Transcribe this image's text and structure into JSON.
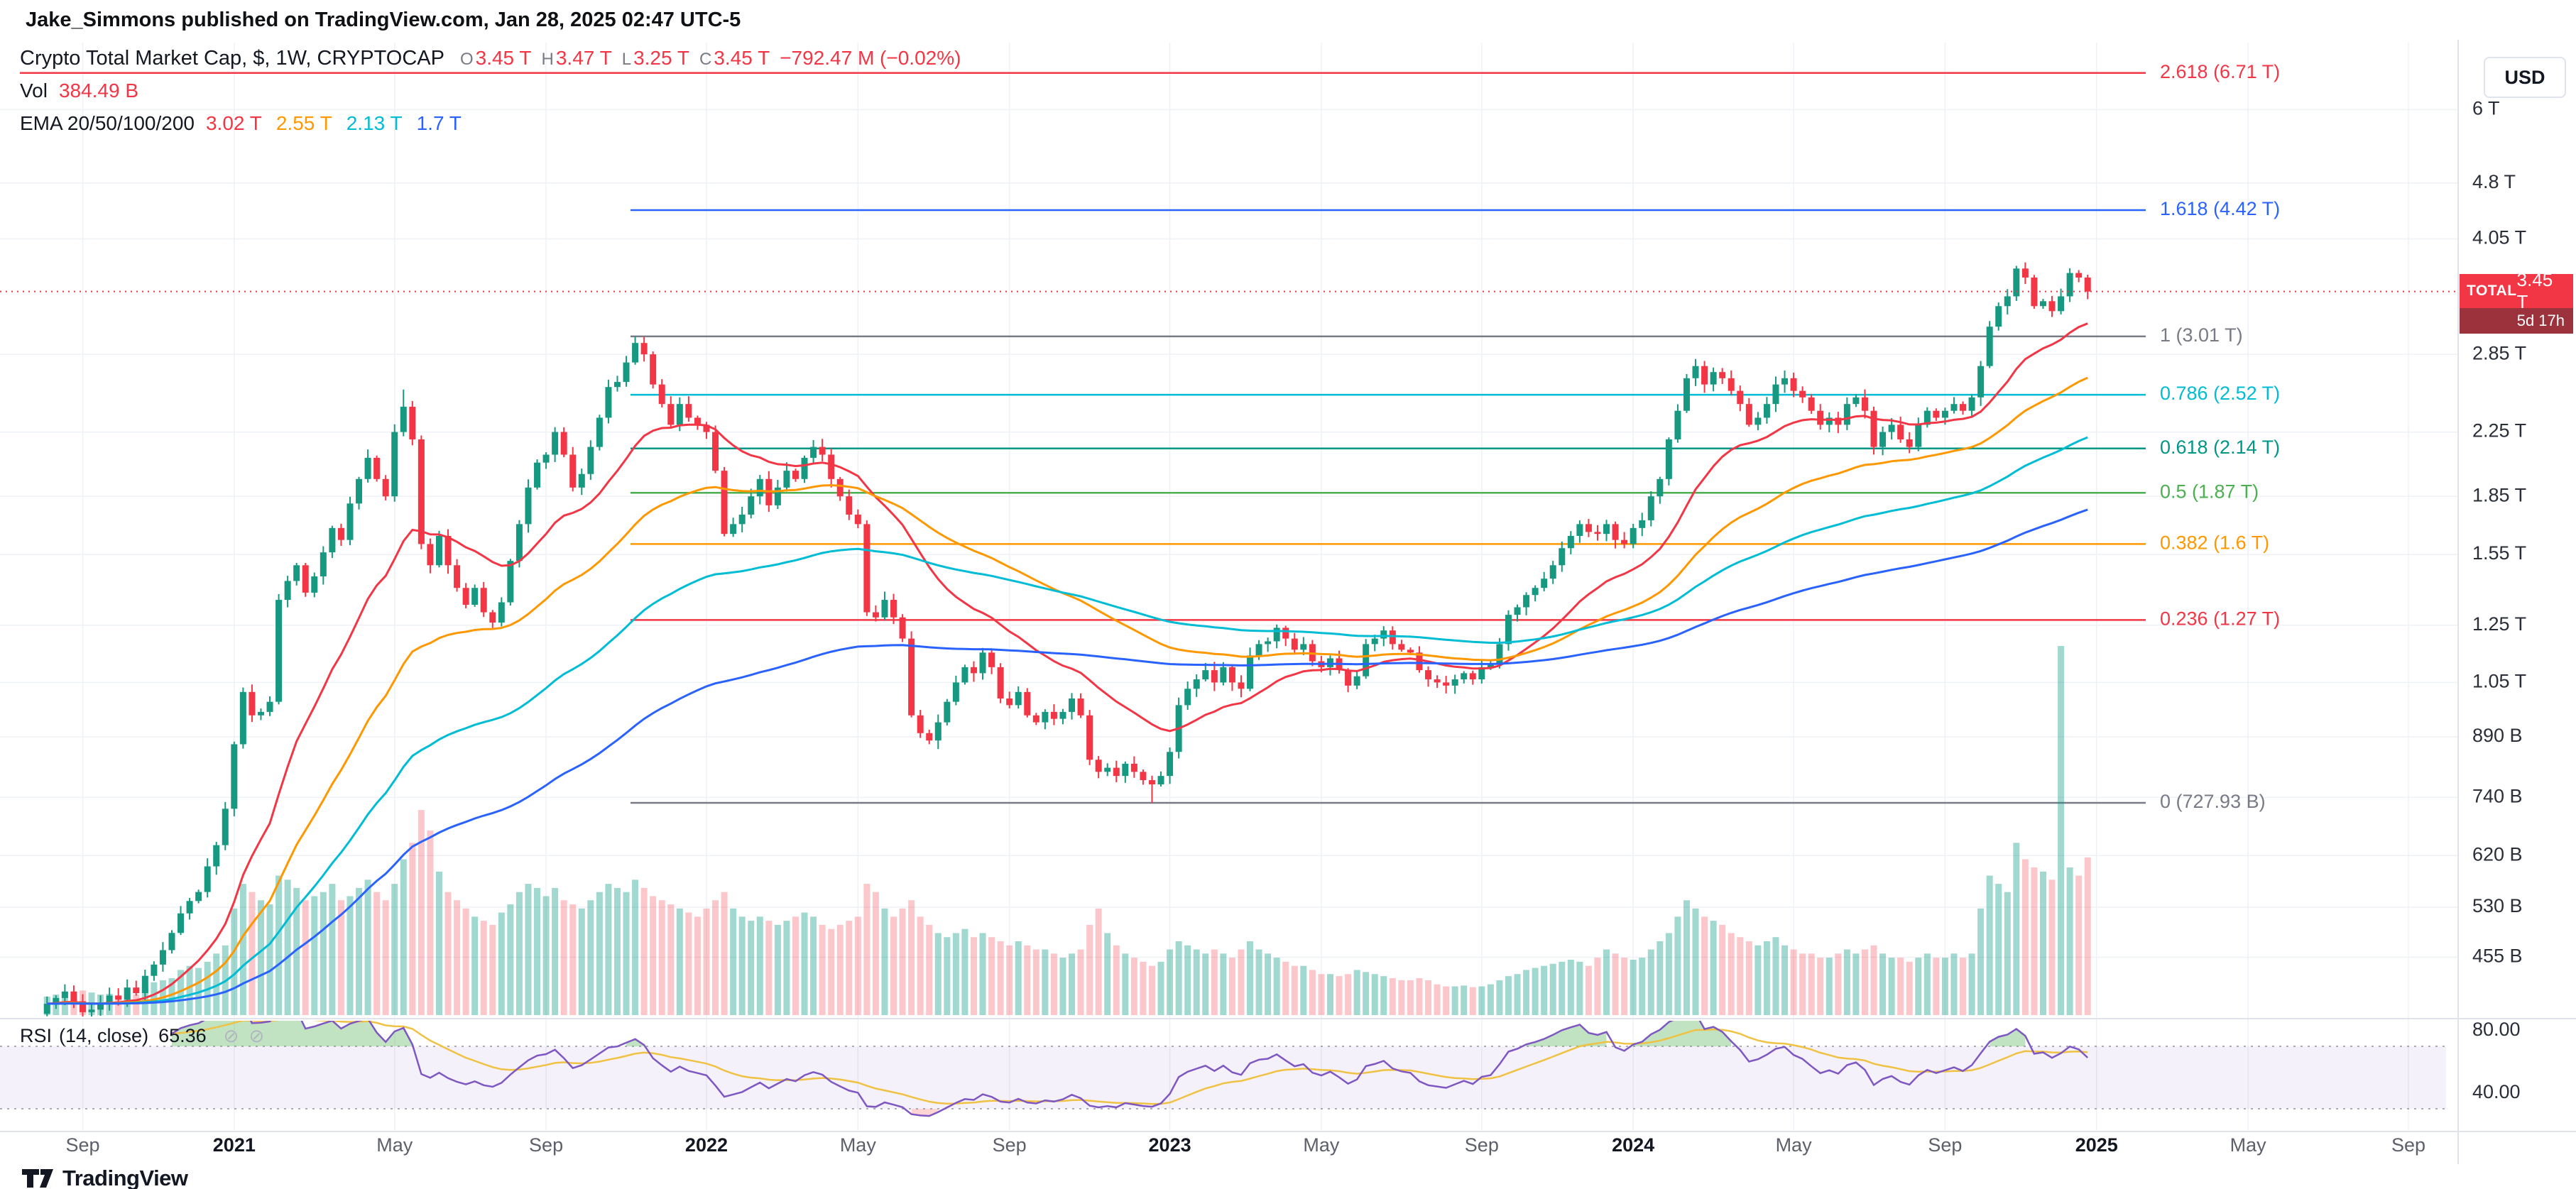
{
  "attribution": {
    "text": "Jake_Simmons published on TradingView.com, Jan 28, 2025 02:47 UTC-5"
  },
  "legend": {
    "title": "Crypto Total Market Cap, $, 1W, CRYPTOCAP",
    "ohlc": {
      "color": "#f23645",
      "o_label": "O",
      "o": "3.45 T",
      "h_label": "H",
      "h": "3.47 T",
      "l_label": "L",
      "l": "3.25 T",
      "c_label": "C",
      "c": "3.45 T",
      "change": "−792.47 M (−0.02%)"
    },
    "vol_label": "Vol",
    "vol_value": "384.49 B",
    "vol_color": "#f23645",
    "ema_label": "EMA 20/50/100/200",
    "ema_values": [
      {
        "text": "3.02 T",
        "color": "#f23645"
      },
      {
        "text": "2.55 T",
        "color": "#ff9800"
      },
      {
        "text": "2.13 T",
        "color": "#00bcd4"
      },
      {
        "text": "1.7 T",
        "color": "#2962ff"
      }
    ]
  },
  "price_scale": {
    "currency": "USD",
    "badge": {
      "symbol": "TOTAL",
      "price": "3.45 T",
      "countdown": "5d 17h"
    }
  },
  "rsi_legend": {
    "name": "RSI",
    "params": "(14, close)",
    "value": "65.36",
    "icon": "⊘"
  },
  "footer": {
    "brand": "TradingView"
  },
  "chart_data": {
    "type": "candlestick",
    "symbol": "CRYPTOCAP:TOTAL",
    "title": "Crypto Total Market Cap",
    "timeframe": "1W",
    "units": "billions USD",
    "start_week": "2020-08-03",
    "current_price_B": 3450,
    "closes_B": [
      395,
      402,
      410,
      398,
      385,
      388,
      395,
      405,
      400,
      415,
      408,
      430,
      445,
      465,
      490,
      520,
      540,
      555,
      600,
      640,
      715,
      870,
      1020,
      950,
      960,
      990,
      1350,
      1430,
      1500,
      1380,
      1450,
      1560,
      1680,
      1620,
      1810,
      1950,
      2080,
      1950,
      1850,
      2250,
      2430,
      2200,
      1600,
      1500,
      1640,
      1500,
      1400,
      1330,
      1400,
      1300,
      1260,
      1340,
      1520,
      1700,
      1900,
      2050,
      2100,
      2250,
      2100,
      1900,
      1980,
      2150,
      2350,
      2580,
      2620,
      2780,
      2950,
      2850,
      2600,
      2450,
      2300,
      2450,
      2350,
      2300,
      2250,
      2000,
      1650,
      1700,
      1750,
      1850,
      1950,
      1800,
      1900,
      2000,
      1950,
      2080,
      2150,
      2100,
      1950,
      1850,
      1750,
      1700,
      1300,
      1280,
      1350,
      1280,
      1200,
      950,
      900,
      880,
      930,
      990,
      1050,
      1100,
      1080,
      1150,
      1100,
      1000,
      980,
      1020,
      950,
      930,
      960,
      940,
      960,
      1000,
      950,
      830,
      800,
      810,
      790,
      820,
      800,
      780,
      770,
      790,
      850,
      980,
      1030,
      1060,
      1090,
      1050,
      1100,
      1050,
      1030,
      1140,
      1180,
      1190,
      1240,
      1200,
      1160,
      1180,
      1120,
      1100,
      1130,
      1090,
      1040,
      1070,
      1180,
      1200,
      1230,
      1180,
      1160,
      1150,
      1090,
      1060,
      1050,
      1040,
      1060,
      1080,
      1060,
      1100,
      1110,
      1180,
      1290,
      1320,
      1370,
      1400,
      1440,
      1500,
      1580,
      1640,
      1700,
      1660,
      1650,
      1700,
      1620,
      1600,
      1680,
      1720,
      1850,
      1950,
      2200,
      2400,
      2650,
      2750,
      2600,
      2700,
      2650,
      2550,
      2450,
      2300,
      2350,
      2450,
      2600,
      2650,
      2550,
      2500,
      2400,
      2300,
      2350,
      2300,
      2450,
      2500,
      2400,
      2150,
      2250,
      2300,
      2200,
      2150,
      2300,
      2400,
      2350,
      2400,
      2450,
      2400,
      2500,
      2750,
      3100,
      3300,
      3400,
      3700,
      3600,
      3300,
      3350,
      3250,
      3400,
      3650,
      3600,
      3450
    ],
    "volumes_B": [
      45,
      50,
      55,
      48,
      60,
      55,
      50,
      52,
      48,
      55,
      50,
      70,
      80,
      85,
      90,
      110,
      120,
      115,
      130,
      150,
      170,
      260,
      320,
      300,
      280,
      270,
      340,
      330,
      310,
      280,
      290,
      300,
      320,
      280,
      290,
      310,
      330,
      300,
      280,
      320,
      380,
      420,
      500,
      450,
      350,
      300,
      280,
      260,
      240,
      230,
      220,
      250,
      270,
      300,
      320,
      310,
      290,
      310,
      280,
      270,
      260,
      280,
      300,
      320,
      310,
      300,
      330,
      310,
      290,
      280,
      270,
      260,
      250,
      240,
      260,
      280,
      300,
      260,
      240,
      230,
      240,
      230,
      220,
      230,
      240,
      250,
      240,
      220,
      210,
      220,
      230,
      240,
      320,
      300,
      260,
      240,
      260,
      280,
      240,
      220,
      200,
      190,
      200,
      210,
      190,
      200,
      190,
      180,
      170,
      180,
      170,
      160,
      160,
      150,
      140,
      150,
      160,
      220,
      260,
      200,
      170,
      150,
      140,
      130,
      120,
      130,
      160,
      180,
      170,
      160,
      150,
      160,
      150,
      140,
      160,
      180,
      160,
      150,
      140,
      130,
      120,
      120,
      110,
      100,
      100,
      95,
      100,
      110,
      105,
      100,
      95,
      90,
      85,
      85,
      90,
      85,
      75,
      70,
      70,
      72,
      68,
      70,
      75,
      85,
      95,
      100,
      110,
      115,
      120,
      125,
      130,
      135,
      130,
      120,
      140,
      160,
      150,
      140,
      135,
      140,
      160,
      180,
      200,
      240,
      280,
      260,
      240,
      230,
      220,
      200,
      190,
      180,
      170,
      180,
      190,
      170,
      160,
      150,
      150,
      140,
      140,
      150,
      160,
      150,
      160,
      170,
      150,
      140,
      140,
      130,
      140,
      150,
      140,
      140,
      150,
      140,
      150,
      260,
      340,
      320,
      300,
      420,
      380,
      360,
      350,
      330,
      900,
      360,
      340,
      384.49
    ],
    "high_overrides_B": {
      "40": 2560,
      "66": 3010,
      "221": 3730
    },
    "low_overrides_B": {
      "124": 728
    },
    "last_bar": {
      "open_B": 3450,
      "high_B": 3470,
      "low_B": 3250,
      "close_B": 3450,
      "change": "−792.47 M (−0.02%)"
    },
    "emas": [
      {
        "period": 20,
        "color": "#f23645",
        "last_value": "3.02 T"
      },
      {
        "period": 50,
        "color": "#ff9800",
        "last_value": "2.55 T"
      },
      {
        "period": 100,
        "color": "#00bcd4",
        "last_value": "2.13 T"
      },
      {
        "period": 200,
        "color": "#2962ff",
        "last_value": "1.7 T"
      }
    ],
    "fib_levels": [
      {
        "level": "2.618",
        "price_B": 6710,
        "text": "2.618 (6.71 T)",
        "color": "#f23645",
        "full_width": true
      },
      {
        "level": "1.618",
        "price_B": 4420,
        "text": "1.618 (4.42 T)",
        "color": "#2962ff"
      },
      {
        "level": "1",
        "price_B": 3010,
        "text": "1 (3.01 T)",
        "color": "#787b86"
      },
      {
        "level": "0.786",
        "price_B": 2520,
        "text": "0.786 (2.52 T)",
        "color": "#00bcd4"
      },
      {
        "level": "0.618",
        "price_B": 2140,
        "text": "0.618 (2.14 T)",
        "color": "#009688"
      },
      {
        "level": "0.5",
        "price_B": 1870,
        "text": "0.5 (1.87 T)",
        "color": "#4caf50"
      },
      {
        "level": "0.382",
        "price_B": 1600,
        "text": "0.382 (1.6 T)",
        "color": "#ff9800"
      },
      {
        "level": "0.236",
        "price_B": 1270,
        "text": "0.236 (1.27 T)",
        "color": "#f23645"
      },
      {
        "level": "0",
        "price_B": 727.93,
        "text": "0 (727.93 B)",
        "color": "#787b86"
      }
    ],
    "price_ticks": [
      {
        "label": "6 T",
        "price_B": 6000
      },
      {
        "label": "4.8 T",
        "price_B": 4800
      },
      {
        "label": "4.05 T",
        "price_B": 4050
      },
      {
        "label": "2.85 T",
        "price_B": 2850
      },
      {
        "label": "2.25 T",
        "price_B": 2250
      },
      {
        "label": "1.85 T",
        "price_B": 1850
      },
      {
        "label": "1.55 T",
        "price_B": 1550
      },
      {
        "label": "1.25 T",
        "price_B": 1250
      },
      {
        "label": "1.05 T",
        "price_B": 1050
      },
      {
        "label": "890 B",
        "price_B": 890
      },
      {
        "label": "740 B",
        "price_B": 740
      },
      {
        "label": "620 B",
        "price_B": 620
      },
      {
        "label": "530 B",
        "price_B": 530
      },
      {
        "label": "455 B",
        "price_B": 455
      }
    ],
    "time_ticks": [
      {
        "label": "Sep",
        "week": 4,
        "major": false
      },
      {
        "label": "2021",
        "week": 21,
        "major": true
      },
      {
        "label": "May",
        "week": 39,
        "major": false
      },
      {
        "label": "Sep",
        "week": 56,
        "major": false
      },
      {
        "label": "2022",
        "week": 74,
        "major": true
      },
      {
        "label": "May",
        "week": 91,
        "major": false
      },
      {
        "label": "Sep",
        "week": 108,
        "major": false
      },
      {
        "label": "2023",
        "week": 126,
        "major": true
      },
      {
        "label": "May",
        "week": 143,
        "major": false
      },
      {
        "label": "Sep",
        "week": 161,
        "major": false
      },
      {
        "label": "2024",
        "week": 178,
        "major": true
      },
      {
        "label": "May",
        "week": 196,
        "major": false
      },
      {
        "label": "Sep",
        "week": 213,
        "major": false
      },
      {
        "label": "2025",
        "week": 230,
        "major": true
      },
      {
        "label": "May",
        "week": 247,
        "major": false
      },
      {
        "label": "Sep",
        "week": 265,
        "major": false
      }
    ],
    "rsi_settings": {
      "period": 14,
      "current": 65.36,
      "upper_band": 70,
      "lower_band": 30,
      "scale_ticks": [
        {
          "label": "80.00",
          "value": 80
        },
        {
          "label": "40.00",
          "value": 40
        }
      ]
    },
    "colors": {
      "up": "#179981",
      "down": "#f23645",
      "vol_up": "rgba(8,153,129,0.38)",
      "vol_down": "rgba(242,54,69,0.28)",
      "grid": "#eef1f6",
      "separator": "#e0e3eb",
      "axis_text": "#2a2e39",
      "minor_time_text": "#5d606b",
      "rsi_line": "#7e57c2",
      "rsi_ma": "#f0c243",
      "rsi_band_fill": "rgba(103,58,183,0.07)",
      "rsi_band_line": "rgba(120,123,134,0.6)",
      "overbought_fill": "rgba(76,175,80,0.35)",
      "oversold_fill": "rgba(255,82,82,0.25)",
      "price_line": "#f23645"
    }
  }
}
